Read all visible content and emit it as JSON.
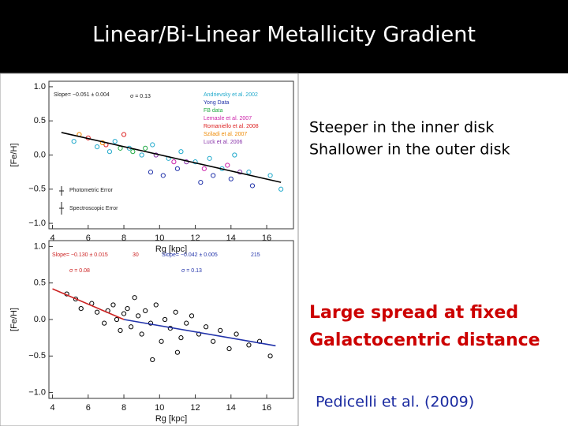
{
  "header": {
    "title": "Linear/Bi-Linear Metallicity Gradient"
  },
  "notes": [
    "Steeper in the inner disk",
    "Shallower in the outer disk"
  ],
  "highlight": [
    "Large spread at fixed",
    "Galactocentric distance"
  ],
  "citation": "Pedicelli et al. (2009)",
  "panels": [
    {
      "xlabel": "Rg [kpc]",
      "ylabel": "[Fe/H]",
      "xlim": [
        3.8,
        17.5
      ],
      "ylim": [
        -1.08,
        1.08
      ],
      "xticks": [
        4,
        6,
        8,
        10,
        12,
        14,
        16
      ],
      "yticks": [
        {
          "value": -1.0,
          "label": "−1.0"
        },
        {
          "value": -0.5,
          "label": "−0.5"
        },
        {
          "value": 0.0,
          "label": "0.0"
        },
        {
          "value": 0.5,
          "label": "0.5"
        },
        {
          "value": 1.0,
          "label": "1.0"
        }
      ],
      "annotations": [
        "Slope= −0.051 ± 0.004",
        "σ = 0.13",
        "Photometric Error",
        "Spectroscopic Error"
      ],
      "series": [
        {
          "name": "Andrievsky et al. 2002",
          "color": "#22aacc",
          "points": [
            [
              5.2,
              0.2
            ],
            [
              6.5,
              0.12
            ],
            [
              7.2,
              0.05
            ],
            [
              7.5,
              0.2
            ],
            [
              8.3,
              0.1
            ],
            [
              9,
              0.0
            ],
            [
              9.6,
              0.15
            ],
            [
              10.5,
              -0.05
            ],
            [
              11.2,
              0.05
            ],
            [
              12,
              -0.1
            ],
            [
              12.8,
              -0.05
            ],
            [
              13.5,
              -0.2
            ],
            [
              14.2,
              0.0
            ],
            [
              15,
              -0.25
            ],
            [
              16.2,
              -0.3
            ],
            [
              16.8,
              -0.5
            ]
          ]
        },
        {
          "name": "Yong Data",
          "color": "#2233aa",
          "points": [
            [
              9.5,
              -0.25
            ],
            [
              10.2,
              -0.3
            ],
            [
              11,
              -0.2
            ],
            [
              12.3,
              -0.4
            ],
            [
              13,
              -0.3
            ],
            [
              14,
              -0.35
            ],
            [
              15.2,
              -0.45
            ]
          ]
        },
        {
          "name": "FB data",
          "color": "#22aa44",
          "points": [
            [
              7.8,
              0.1
            ],
            [
              8.5,
              0.05
            ],
            [
              9.2,
              0.1
            ]
          ]
        },
        {
          "name": "Lemasle et al. 2007",
          "color": "#cc22aa",
          "points": [
            [
              10.8,
              -0.1
            ],
            [
              12.5,
              -0.2
            ],
            [
              13.8,
              -0.15
            ]
          ]
        },
        {
          "name": "Romaniello et al. 2008",
          "color": "#dd2222",
          "points": [
            [
              6,
              0.25
            ],
            [
              7,
              0.15
            ],
            [
              8,
              0.3
            ]
          ]
        },
        {
          "name": "Sziladi et al. 2007",
          "color": "#ee8800",
          "points": [
            [
              5.5,
              0.3
            ],
            [
              6.8,
              0.18
            ]
          ]
        },
        {
          "name": "Luck et al. 2006",
          "color": "#8833aa",
          "points": [
            [
              9.8,
              0.0
            ],
            [
              11.5,
              -0.1
            ],
            [
              14.5,
              -0.25
            ]
          ]
        }
      ],
      "fits": [
        {
          "color": "#000000",
          "points": [
            [
              4.5,
              0.33
            ],
            [
              16.8,
              -0.4
            ]
          ]
        }
      ]
    },
    {
      "xlabel": "Rg [kpc]",
      "ylabel": "[Fe/H]",
      "xlim": [
        3.8,
        17.5
      ],
      "ylim": [
        -1.08,
        1.08
      ],
      "xticks": [
        4,
        6,
        8,
        10,
        12,
        14,
        16
      ],
      "yticks": [
        {
          "value": -1.0,
          "label": "−1.0"
        },
        {
          "value": -0.5,
          "label": "−0.5"
        },
        {
          "value": 0.0,
          "label": "0.0"
        },
        {
          "value": 0.5,
          "label": "0.5"
        },
        {
          "value": 1.0,
          "label": "1.0"
        }
      ],
      "annotations": [
        "Slope= −0.130 ± 0.015",
        "30",
        "Slope= −0.042 ± 0.005",
        "215",
        "σ = 0.08",
        "σ = 0.13"
      ],
      "series": [
        {
          "color": "#000000",
          "points": [
            [
              4.8,
              0.35
            ],
            [
              5.3,
              0.28
            ],
            [
              5.6,
              0.15
            ],
            [
              6.2,
              0.22
            ],
            [
              6.5,
              0.1
            ],
            [
              6.9,
              -0.05
            ],
            [
              7.1,
              0.12
            ],
            [
              7.4,
              0.2
            ],
            [
              7.6,
              0.0
            ],
            [
              7.8,
              -0.15
            ],
            [
              8.0,
              0.08
            ],
            [
              8.2,
              0.15
            ],
            [
              8.4,
              -0.1
            ],
            [
              8.6,
              0.3
            ],
            [
              8.8,
              0.05
            ],
            [
              9.0,
              -0.2
            ],
            [
              9.2,
              0.12
            ],
            [
              9.5,
              -0.05
            ],
            [
              9.8,
              0.2
            ],
            [
              10.1,
              -0.3
            ],
            [
              10.3,
              0.0
            ],
            [
              10.6,
              -0.12
            ],
            [
              10.9,
              0.1
            ],
            [
              11.2,
              -0.25
            ],
            [
              11.5,
              -0.05
            ],
            [
              11.8,
              0.05
            ],
            [
              12.2,
              -0.2
            ],
            [
              12.6,
              -0.1
            ],
            [
              13.0,
              -0.3
            ],
            [
              13.4,
              -0.15
            ],
            [
              13.9,
              -0.4
            ],
            [
              14.3,
              -0.2
            ],
            [
              15.0,
              -0.35
            ],
            [
              15.6,
              -0.3
            ],
            [
              16.2,
              -0.5
            ],
            [
              9.6,
              -0.55
            ],
            [
              11.0,
              -0.45
            ]
          ]
        }
      ],
      "fits": [
        {
          "color": "#cc2222",
          "points": [
            [
              4,
              0.42
            ],
            [
              8,
              0.0
            ]
          ]
        },
        {
          "color": "#2233aa",
          "points": [
            [
              8,
              0.0
            ],
            [
              16.5,
              -0.36
            ]
          ]
        }
      ]
    }
  ]
}
